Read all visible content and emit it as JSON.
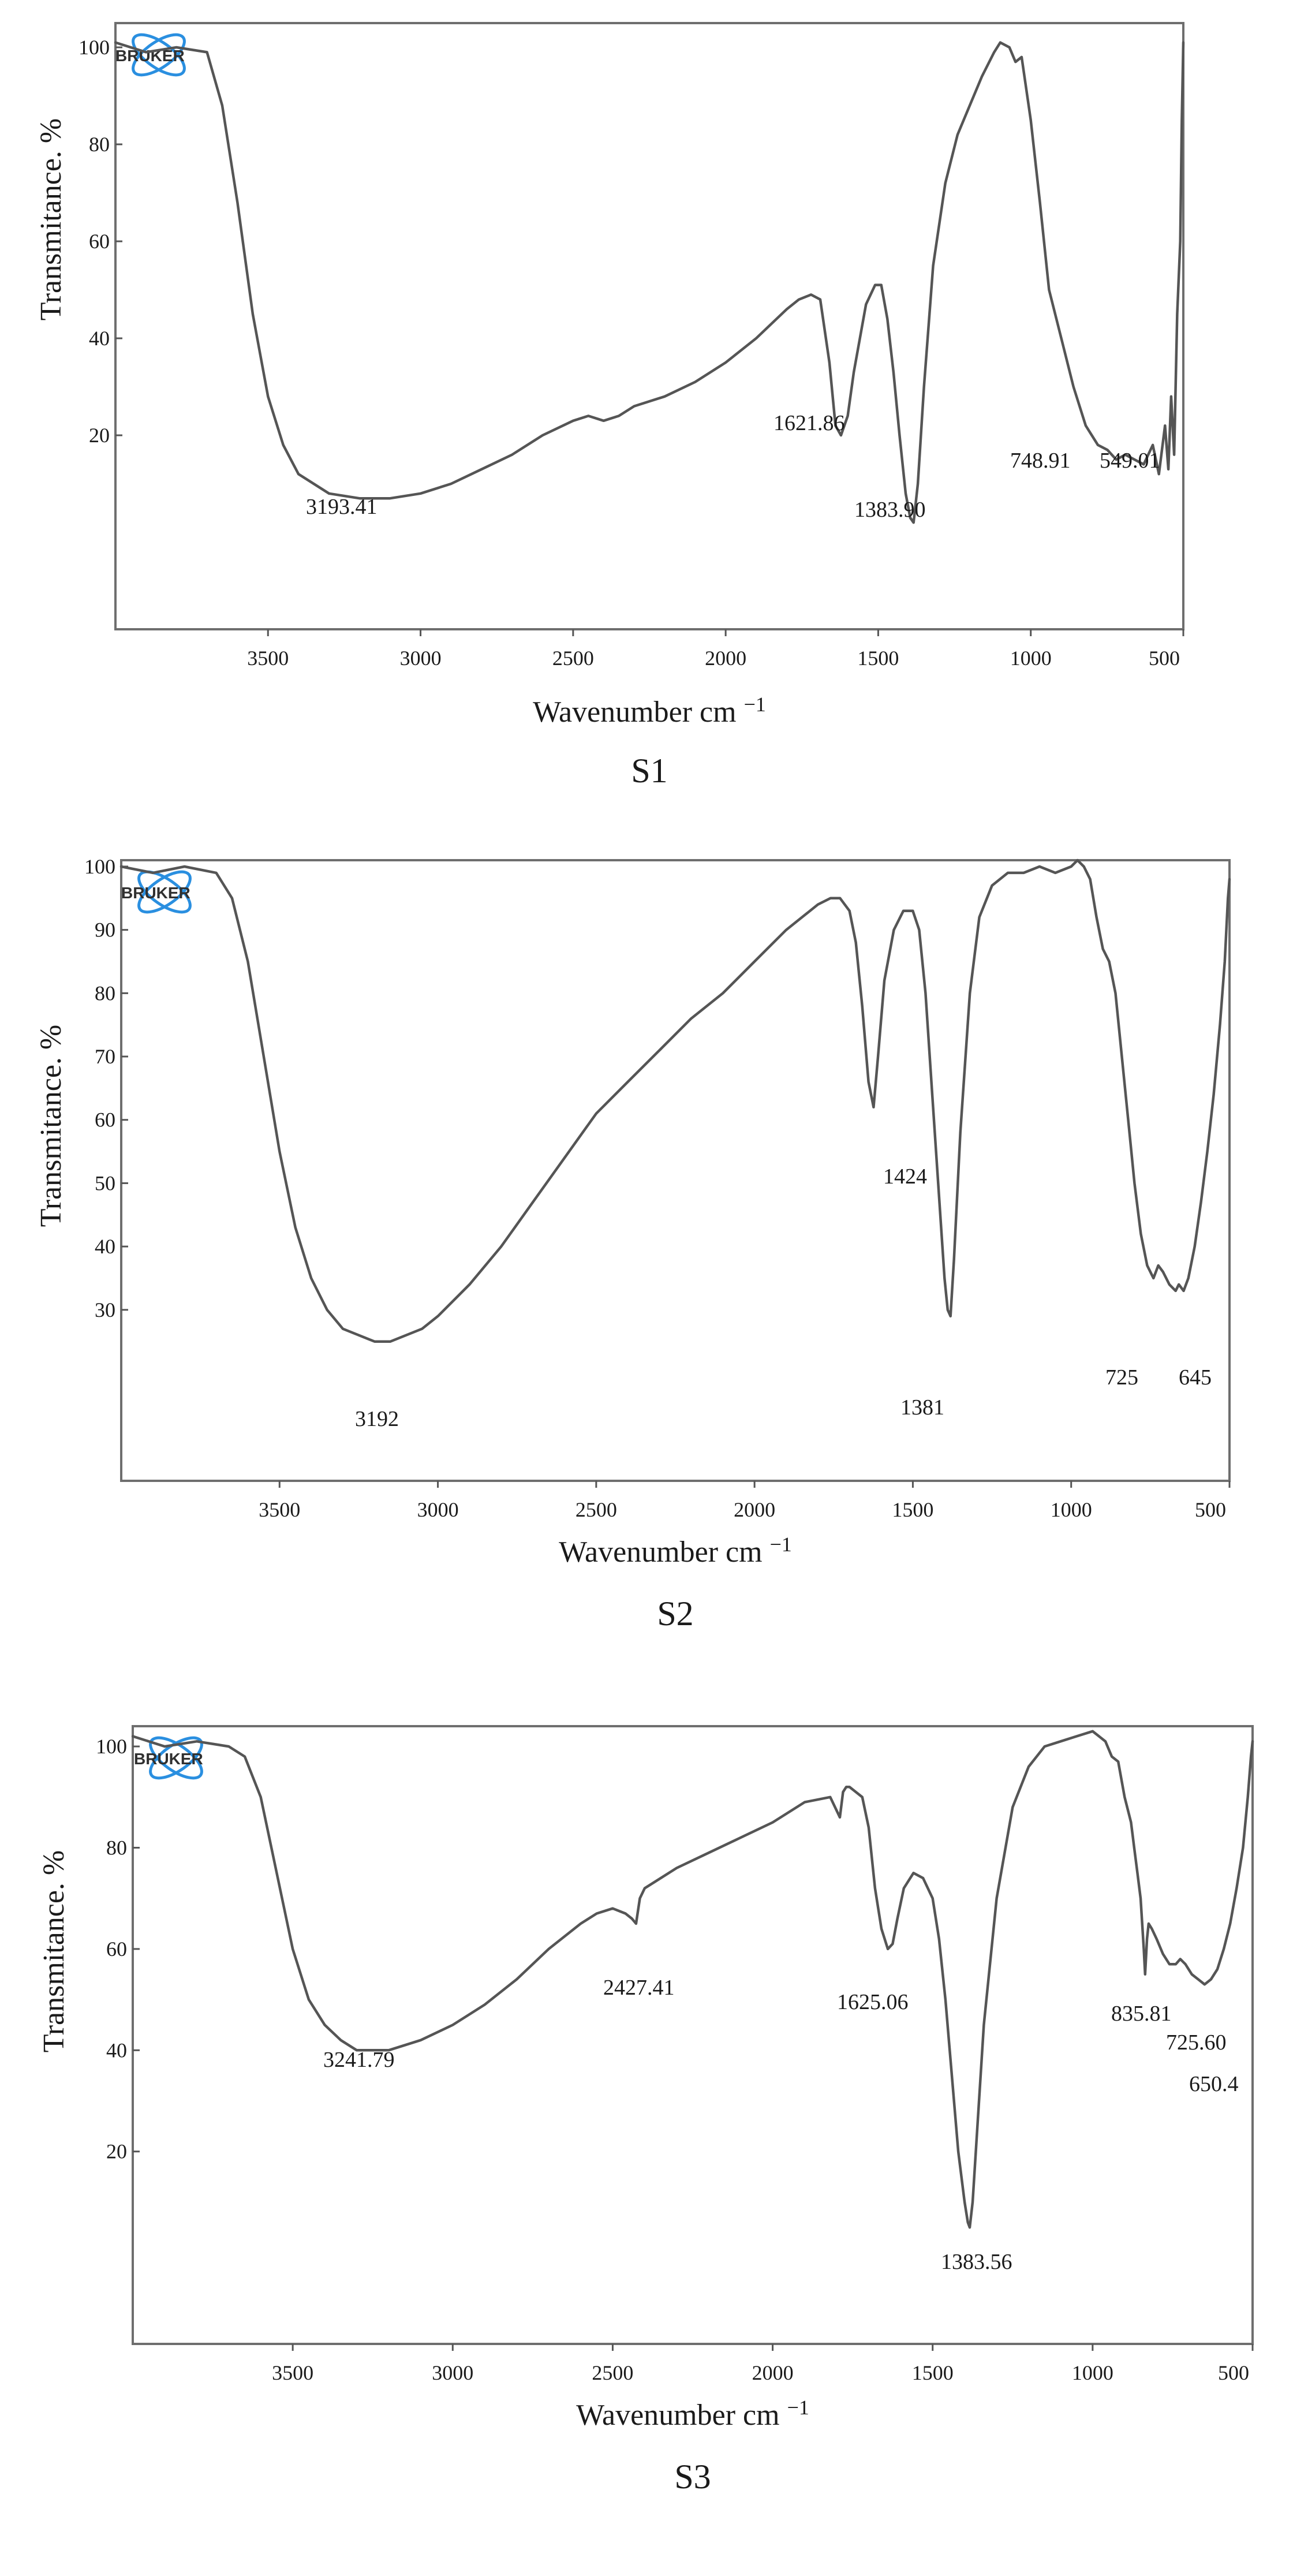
{
  "colors": {
    "trace": "#555555",
    "frame": "#6e6e6e",
    "logo": "#2a8fe0"
  },
  "logo_text": "BRUKER",
  "chart_data": [
    {
      "type": "line",
      "panel_label": "S1",
      "xlabel": "Wavenumber cm",
      "xlabel_exponent": "−1",
      "ylabel": "Transmitance. %",
      "xlim": [
        4000,
        500
      ],
      "ylim": [
        -20,
        105
      ],
      "x_reversed": true,
      "x_ticks": [
        3500,
        3000,
        2500,
        2000,
        1500,
        1000,
        500
      ],
      "x_tick_labels": [
        "3500",
        "3000",
        "2500",
        "2000",
        "1500",
        "1000",
        "500"
      ],
      "y_ticks": [
        20,
        40,
        60,
        80,
        100
      ],
      "y_tick_labels": [
        "20",
        "40",
        "60",
        "80",
        "100"
      ],
      "grid": false,
      "series": [
        {
          "x": [
            4000,
            3900,
            3800,
            3700,
            3650,
            3600,
            3550,
            3500,
            3450,
            3400,
            3300,
            3200,
            3100,
            3000,
            2900,
            2800,
            2700,
            2600,
            2500,
            2450,
            2400,
            2350,
            2300,
            2200,
            2100,
            2000,
            1900,
            1800,
            1760,
            1720,
            1690,
            1660,
            1640,
            1622,
            1600,
            1580,
            1560,
            1540,
            1510,
            1490,
            1470,
            1450,
            1430,
            1410,
            1395,
            1384,
            1370,
            1350,
            1320,
            1280,
            1240,
            1200,
            1160,
            1120,
            1100,
            1070,
            1050,
            1030,
            1000,
            970,
            940,
            900,
            860,
            820,
            780,
            749,
            720,
            690,
            660,
            630,
            600,
            580,
            560,
            549,
            540,
            530,
            520,
            510,
            505,
            500
          ],
          "y": [
            101,
            99,
            100,
            99,
            88,
            68,
            45,
            28,
            18,
            12,
            8,
            7,
            7,
            8,
            10,
            13,
            16,
            20,
            23,
            24,
            23,
            24,
            26,
            28,
            31,
            35,
            40,
            46,
            48,
            49,
            48,
            35,
            22,
            20,
            24,
            33,
            40,
            47,
            51,
            51,
            44,
            33,
            20,
            8,
            3,
            2,
            10,
            30,
            55,
            72,
            82,
            88,
            94,
            99,
            101,
            100,
            97,
            98,
            85,
            68,
            50,
            40,
            30,
            22,
            18,
            17,
            15,
            16,
            15,
            14,
            18,
            12,
            22,
            13,
            28,
            16,
            45,
            60,
            85,
            101
          ]
        }
      ],
      "annotations": [
        "3193.41",
        "1621.86",
        "1383.90",
        "748.91",
        "549.01"
      ]
    },
    {
      "type": "line",
      "panel_label": "S2",
      "xlabel": "Wavenumber cm",
      "xlabel_exponent": "−1",
      "ylabel": "Transmitance. %",
      "xlim": [
        4000,
        500
      ],
      "ylim": [
        3,
        101
      ],
      "x_reversed": true,
      "x_ticks": [
        3500,
        3000,
        2500,
        2000,
        1500,
        1000,
        500
      ],
      "x_tick_labels": [
        "3500",
        "3000",
        "2500",
        "2000",
        "1500",
        "1000",
        "500"
      ],
      "y_ticks": [
        30,
        40,
        50,
        60,
        70,
        80,
        90,
        100
      ],
      "y_tick_labels": [
        "30",
        "40",
        "50",
        "60",
        "70",
        "80",
        "90",
        "100"
      ],
      "grid": false,
      "series": [
        {
          "x": [
            4000,
            3900,
            3800,
            3700,
            3650,
            3600,
            3550,
            3500,
            3450,
            3400,
            3350,
            3300,
            3250,
            3200,
            3150,
            3100,
            3050,
            3000,
            2900,
            2800,
            2700,
            2600,
            2500,
            2400,
            2300,
            2200,
            2100,
            2000,
            1900,
            1800,
            1760,
            1730,
            1700,
            1680,
            1660,
            1640,
            1624,
            1610,
            1590,
            1560,
            1530,
            1500,
            1480,
            1460,
            1440,
            1420,
            1400,
            1390,
            1381,
            1370,
            1350,
            1320,
            1290,
            1250,
            1200,
            1150,
            1100,
            1050,
            1000,
            980,
            960,
            940,
            920,
            900,
            880,
            860,
            840,
            820,
            800,
            780,
            760,
            740,
            725,
            710,
            690,
            670,
            660,
            645,
            630,
            610,
            590,
            570,
            550,
            530,
            515,
            505,
            500
          ],
          "y": [
            100,
            99,
            100,
            99,
            95,
            85,
            70,
            55,
            43,
            35,
            30,
            27,
            26,
            25,
            25,
            26,
            27,
            29,
            34,
            40,
            47,
            54,
            61,
            66,
            71,
            76,
            80,
            85,
            90,
            94,
            95,
            95,
            93,
            88,
            78,
            66,
            62,
            70,
            82,
            90,
            93,
            93,
            90,
            80,
            65,
            50,
            35,
            30,
            29,
            38,
            58,
            80,
            92,
            97,
            99,
            99,
            100,
            99,
            100,
            101,
            100,
            98,
            92,
            87,
            85,
            80,
            70,
            60,
            50,
            42,
            37,
            35,
            37,
            36,
            34,
            33,
            34,
            33,
            35,
            40,
            47,
            55,
            64,
            75,
            85,
            95,
            98
          ]
        }
      ],
      "annotations": [
        "3192",
        "1424",
        "1381",
        "725",
        "645"
      ]
    },
    {
      "type": "line",
      "panel_label": "S3",
      "xlabel": "Wavenumber cm",
      "xlabel_exponent": "−1",
      "ylabel": "Transmitance. %",
      "xlim": [
        4000,
        500
      ],
      "ylim": [
        -18,
        104
      ],
      "x_reversed": true,
      "x_ticks": [
        3500,
        3000,
        2500,
        2000,
        1500,
        1000,
        500
      ],
      "x_tick_labels": [
        "3500",
        "3000",
        "2500",
        "2000",
        "1500",
        "1000",
        "500"
      ],
      "y_ticks": [
        20,
        40,
        60,
        80,
        100
      ],
      "y_tick_labels": [
        "20",
        "40",
        "60",
        "80",
        "100"
      ],
      "grid": false,
      "series": [
        {
          "x": [
            4000,
            3900,
            3800,
            3700,
            3650,
            3600,
            3550,
            3500,
            3450,
            3400,
            3350,
            3300,
            3242,
            3200,
            3100,
            3000,
            2900,
            2800,
            2700,
            2600,
            2550,
            2500,
            2460,
            2440,
            2427,
            2415,
            2400,
            2300,
            2200,
            2100,
            2000,
            1900,
            1820,
            1790,
            1780,
            1770,
            1760,
            1740,
            1720,
            1700,
            1680,
            1660,
            1640,
            1625,
            1610,
            1590,
            1560,
            1530,
            1500,
            1480,
            1460,
            1440,
            1420,
            1400,
            1390,
            1384,
            1375,
            1360,
            1340,
            1300,
            1250,
            1200,
            1150,
            1100,
            1050,
            1000,
            960,
            940,
            920,
            900,
            880,
            870,
            860,
            850,
            840,
            836,
            830,
            825,
            815,
            800,
            780,
            760,
            740,
            726,
            710,
            690,
            670,
            650,
            630,
            610,
            590,
            570,
            550,
            530,
            515,
            505,
            500
          ],
          "y": [
            102,
            100,
            101,
            100,
            98,
            90,
            75,
            60,
            50,
            45,
            42,
            40,
            40,
            40,
            42,
            45,
            49,
            54,
            60,
            65,
            67,
            68,
            67,
            66,
            65,
            70,
            72,
            76,
            79,
            82,
            85,
            89,
            90,
            86,
            91,
            92,
            92,
            91,
            90,
            84,
            72,
            64,
            60,
            61,
            66,
            72,
            75,
            74,
            70,
            62,
            50,
            35,
            20,
            10,
            6,
            5,
            10,
            25,
            45,
            70,
            88,
            96,
            100,
            101,
            102,
            103,
            101,
            98,
            97,
            90,
            85,
            80,
            75,
            70,
            60,
            55,
            62,
            65,
            64,
            62,
            59,
            57,
            57,
            58,
            57,
            55,
            54,
            53,
            54,
            56,
            60,
            65,
            72,
            80,
            90,
            98,
            101
          ]
        }
      ],
      "annotations": [
        "3241.79",
        "2427.41",
        "1625.06",
        "1383.56",
        "835.81",
        "725.60",
        "650.4"
      ]
    }
  ]
}
